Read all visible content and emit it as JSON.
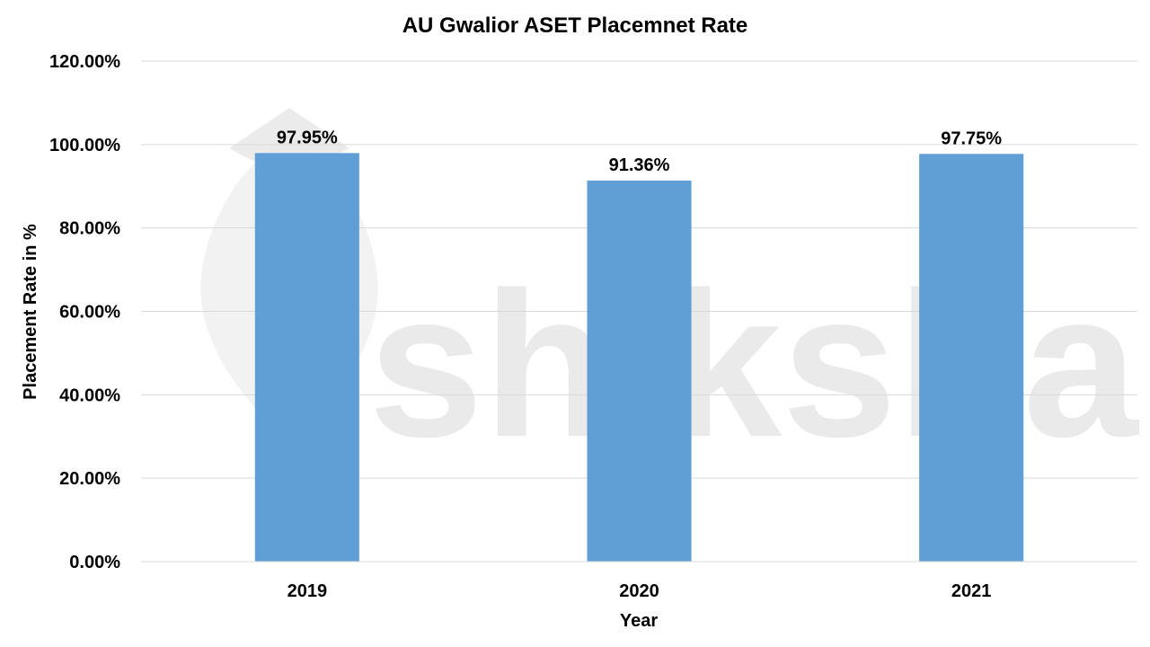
{
  "chart_data": {
    "type": "bar",
    "title": "AU Gwalior ASET Placemnet Rate",
    "xlabel": "Year",
    "ylabel": "Placement Rate in %",
    "categories": [
      "2019",
      "2020",
      "2021"
    ],
    "values": [
      97.95,
      91.36,
      97.75
    ],
    "data_labels": [
      "97.95%",
      "91.36%",
      "97.75%"
    ],
    "ylim": [
      0,
      120
    ],
    "yticks": [
      0,
      20,
      40,
      60,
      80,
      100,
      120
    ],
    "ytick_labels": [
      "0.00%",
      "20.00%",
      "40.00%",
      "60.00%",
      "80.00%",
      "100.00%",
      "120.00%"
    ],
    "grid": true,
    "legend": "none",
    "bar_color": "#5b9bd5"
  },
  "watermark": {
    "text": "shiksha"
  }
}
